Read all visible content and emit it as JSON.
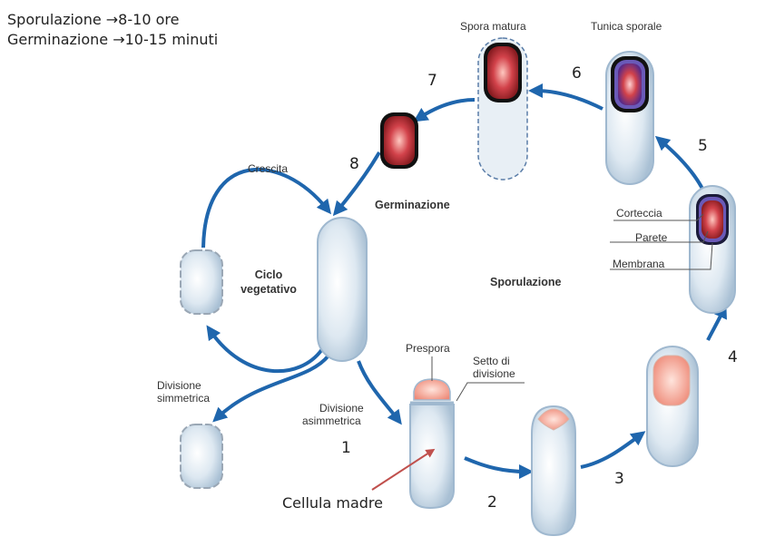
{
  "header": {
    "line1": "Sporulazione →8-10 ore",
    "line2": "Germinazione →10-15 minuti"
  },
  "labels": {
    "spora_matura": "Spora matura",
    "tunica_sporale": "Tunica sporale",
    "crescita": "Crescita",
    "germinazione": "Germinazione",
    "corteccia": "Corteccia",
    "parete": "Parete",
    "membrana": "Membrana",
    "ciclo_line1": "Ciclo",
    "ciclo_line2": "vegetativo",
    "sporulazione": "Sporulazione",
    "prespora": "Prespora",
    "setto_line1": "Setto di",
    "setto_line2": "divisione",
    "div_simm_line1": "Divisione",
    "div_simm_line2": "simmetrica",
    "div_asimm_line1": "Divisione",
    "div_asimm_line2": "asimmetrica",
    "cellula_madre": "Cellula madre"
  },
  "steps": {
    "n1": "1",
    "n2": "2",
    "n3": "3",
    "n4": "4",
    "n5": "5",
    "n6": "6",
    "n7": "7",
    "n8": "8"
  },
  "colors": {
    "arrow": "#1f66ad",
    "cell_outline": "#9fb8cf",
    "spore_red": "#c9323b",
    "prespore": "#f0a090",
    "pointer": "#c0504d"
  }
}
